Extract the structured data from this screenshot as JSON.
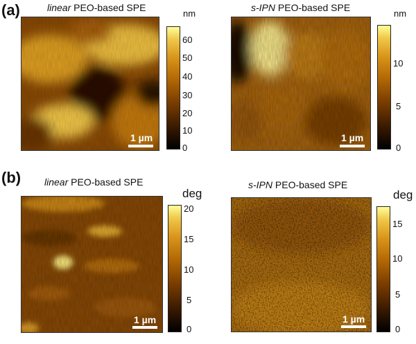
{
  "panels": {
    "a": {
      "label": "(a)",
      "left": {
        "title_italic": "linear",
        "title_rest": " PEO-based SPE",
        "scale_bar": "1 µm",
        "colorbar": {
          "unit": "nm",
          "ticks": [
            "60",
            "50",
            "40",
            "30",
            "20",
            "10",
            "0"
          ],
          "range": [
            0,
            66
          ]
        }
      },
      "right": {
        "title_italic": "s-IPN",
        "title_rest": " PEO-based SPE",
        "scale_bar": "1 µm",
        "colorbar": {
          "unit": "nm",
          "ticks": [
            "10",
            "5",
            "0"
          ],
          "range": [
            0,
            14
          ]
        }
      }
    },
    "b": {
      "label": "(b)",
      "left": {
        "title_italic": "linear",
        "title_rest": " PEO-based SPE",
        "scale_bar": "1 µm",
        "colorbar": {
          "unit": "deg",
          "ticks": [
            "20",
            "15",
            "10",
            "5",
            "0"
          ],
          "range": [
            0,
            21
          ]
        }
      },
      "right": {
        "title_italic": "s-IPN",
        "title_rest": " PEO-based SPE",
        "scale_bar": "1 µm",
        "colorbar": {
          "unit": "deg",
          "ticks": [
            "15",
            "10",
            "5",
            "0"
          ],
          "range": [
            0,
            17.5
          ]
        }
      }
    }
  },
  "colors": {
    "colormap": [
      "#000000",
      "#3a1a00",
      "#7a3d00",
      "#b56a05",
      "#d9951a",
      "#f0c84a",
      "#ffff99"
    ]
  }
}
